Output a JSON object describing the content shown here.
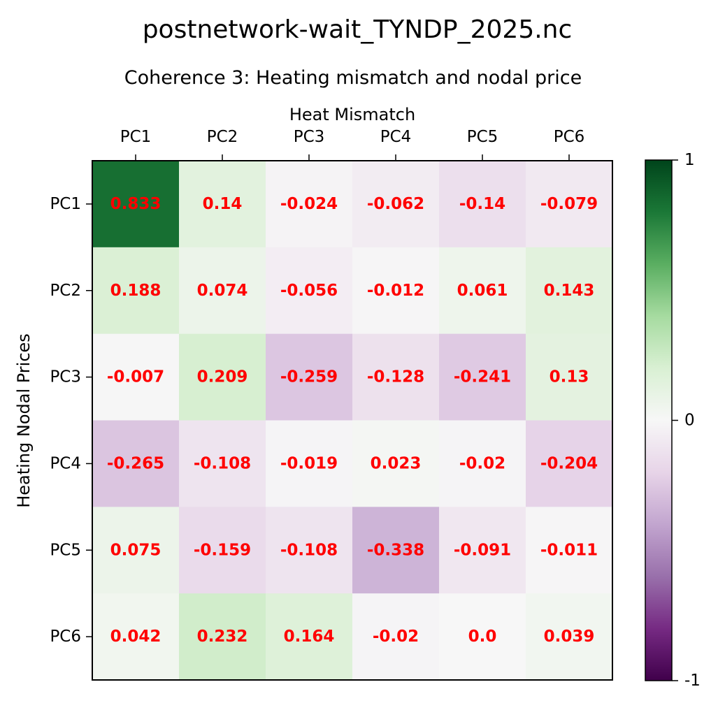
{
  "chart_data": {
    "type": "heatmap",
    "title": "postnetwork-wait_TYNDP_2025.nc",
    "subtitle": "Coherence 3: Heating mismatch and nodal price",
    "xlabel": "Heat Mismatch",
    "ylabel": "Heating Nodal Prices",
    "x_categories": [
      "PC1",
      "PC2",
      "PC3",
      "PC4",
      "PC5",
      "PC6"
    ],
    "y_categories": [
      "PC1",
      "PC2",
      "PC3",
      "PC4",
      "PC5",
      "PC6"
    ],
    "values": [
      [
        0.833,
        0.14,
        -0.024,
        -0.062,
        -0.14,
        -0.079
      ],
      [
        0.188,
        0.074,
        -0.056,
        -0.012,
        0.061,
        0.143
      ],
      [
        -0.007,
        0.209,
        -0.259,
        -0.128,
        -0.241,
        0.13
      ],
      [
        -0.265,
        -0.108,
        -0.019,
        0.023,
        -0.02,
        -0.204
      ],
      [
        0.075,
        -0.159,
        -0.108,
        -0.338,
        -0.091,
        -0.011
      ],
      [
        0.042,
        0.232,
        0.164,
        -0.02,
        0.0,
        0.039
      ]
    ],
    "value_labels": [
      [
        "0.833",
        "0.14",
        "-0.024",
        "-0.062",
        "-0.14",
        "-0.079"
      ],
      [
        "0.188",
        "0.074",
        "-0.056",
        "-0.012",
        "0.061",
        "0.143"
      ],
      [
        "-0.007",
        "0.209",
        "-0.259",
        "-0.128",
        "-0.241",
        "0.13"
      ],
      [
        "-0.265",
        "-0.108",
        "-0.019",
        "0.023",
        "-0.02",
        "-0.204"
      ],
      [
        "0.075",
        "-0.159",
        "-0.108",
        "-0.338",
        "-0.091",
        "-0.011"
      ],
      [
        "0.042",
        "0.232",
        "0.164",
        "-0.02",
        "0.0",
        "0.039"
      ]
    ],
    "colormap": "PRGn",
    "vmin": -1,
    "vmax": 1,
    "colorbar_ticks": [
      {
        "value": 1,
        "label": "1"
      },
      {
        "value": 0,
        "label": "0"
      },
      {
        "value": -1,
        "label": "-1"
      }
    ],
    "x_tick_position": "top",
    "annotation_color": "#ff0000",
    "grid": false
  }
}
